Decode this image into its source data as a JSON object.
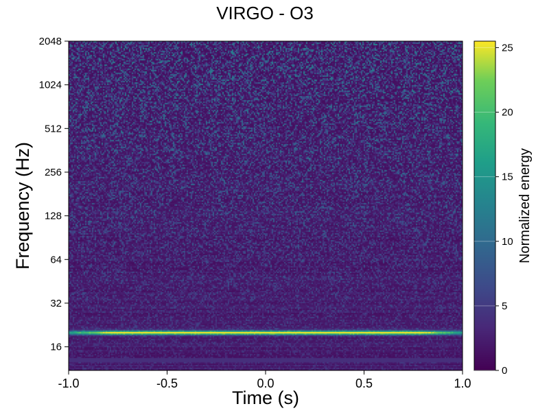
{
  "chart_data": {
    "type": "heatmap",
    "title": "VIRGO - O3",
    "xlabel": "Time (s)",
    "ylabel": "Frequency (Hz)",
    "xlim": [
      -1.0,
      1.0
    ],
    "ylim": [
      11,
      2048
    ],
    "yscale": "log2",
    "x_ticks": [
      -1.0,
      -0.5,
      0.0,
      0.5,
      1.0
    ],
    "x_tick_labels": [
      "-1.0",
      "-0.5",
      "0.0",
      "0.5",
      "1.0"
    ],
    "y_ticks": [
      16,
      32,
      64,
      128,
      256,
      512,
      1024,
      2048
    ],
    "y_tick_labels": [
      "16",
      "32",
      "64",
      "128",
      "256",
      "512",
      "1024",
      "2048"
    ],
    "colorbar": {
      "label": "Normalized energy",
      "range": [
        0,
        25.5
      ],
      "colormap": "viridis",
      "ticks": [
        0,
        5,
        10,
        15,
        20,
        25
      ],
      "tick_labels": [
        "0",
        "5",
        "10",
        "15",
        "20",
        "25"
      ]
    },
    "features": [
      {
        "frequency": 20,
        "time_range": [
          -1.0,
          1.0
        ],
        "energy": 25
      }
    ],
    "background_energy": 1.5,
    "grid": false
  }
}
